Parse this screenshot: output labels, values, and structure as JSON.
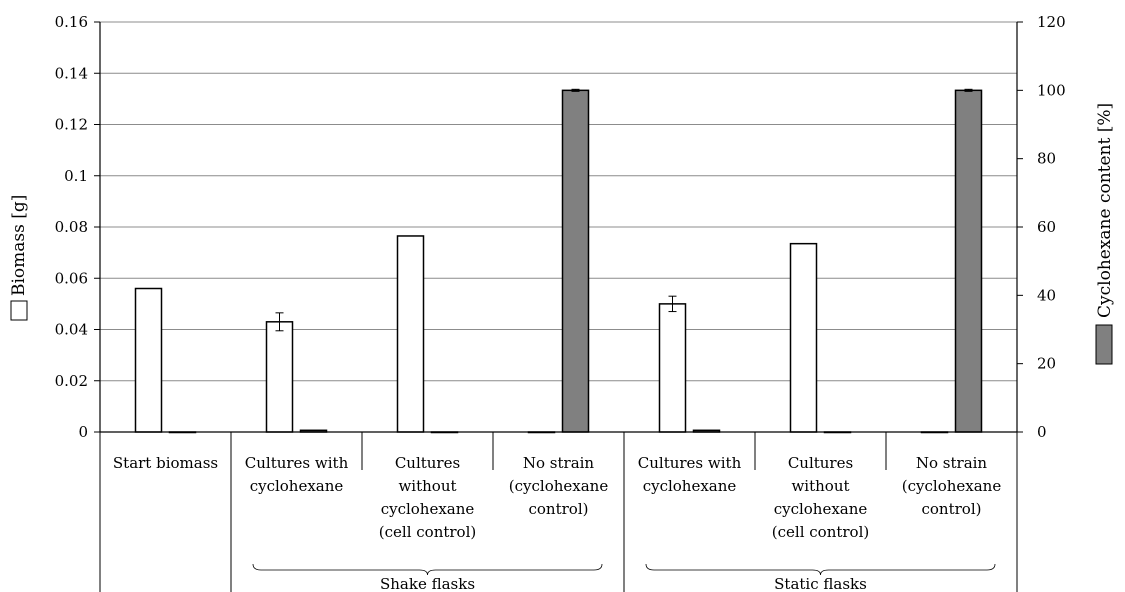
{
  "chart_data": {
    "type": "bar",
    "categories": [
      [
        "Start biomass"
      ],
      [
        "Cultures with",
        "cyclohexane"
      ],
      [
        "Cultures",
        "without",
        "cyclohexane",
        "(cell control)"
      ],
      [
        "No strain",
        "(cyclohexane",
        "control)"
      ],
      [
        "Cultures with",
        "cyclohexane"
      ],
      [
        "Cultures",
        "without",
        "cyclohexane",
        "(cell control)"
      ],
      [
        "No strain",
        "(cyclohexane",
        "control)"
      ]
    ],
    "groups": [
      {
        "label": "Shake flasks",
        "from": 1,
        "to": 3
      },
      {
        "label": "Static flasks",
        "from": 4,
        "to": 6
      }
    ],
    "series": [
      {
        "axis": "left",
        "color": "#ffffff",
        "values": [
          0.056,
          0.043,
          0.0765,
          0,
          0.05,
          0.0735,
          0
        ],
        "errors": [
          0,
          0.0035,
          0,
          0,
          0.003,
          0,
          0
        ]
      },
      {
        "axis": "right",
        "color": "#808080",
        "values": [
          0,
          0.5,
          0,
          100,
          0.5,
          0,
          100
        ],
        "errors": [
          0,
          0,
          0,
          0.3,
          0,
          0,
          0.3
        ]
      }
    ],
    "ylabel": "Biomass [g]",
    "y2label": "Cyclohexane content [%]",
    "ylim": [
      0,
      0.16
    ],
    "yticks": [
      "0",
      "0.02",
      "0.04",
      "0.06",
      "0.08",
      "0.1",
      "0.12",
      "0.14",
      "0.16"
    ],
    "y2lim": [
      0,
      120
    ],
    "y2ticks": [
      "0",
      "20",
      "40",
      "60",
      "80",
      "100",
      "120"
    ],
    "grid": true
  }
}
